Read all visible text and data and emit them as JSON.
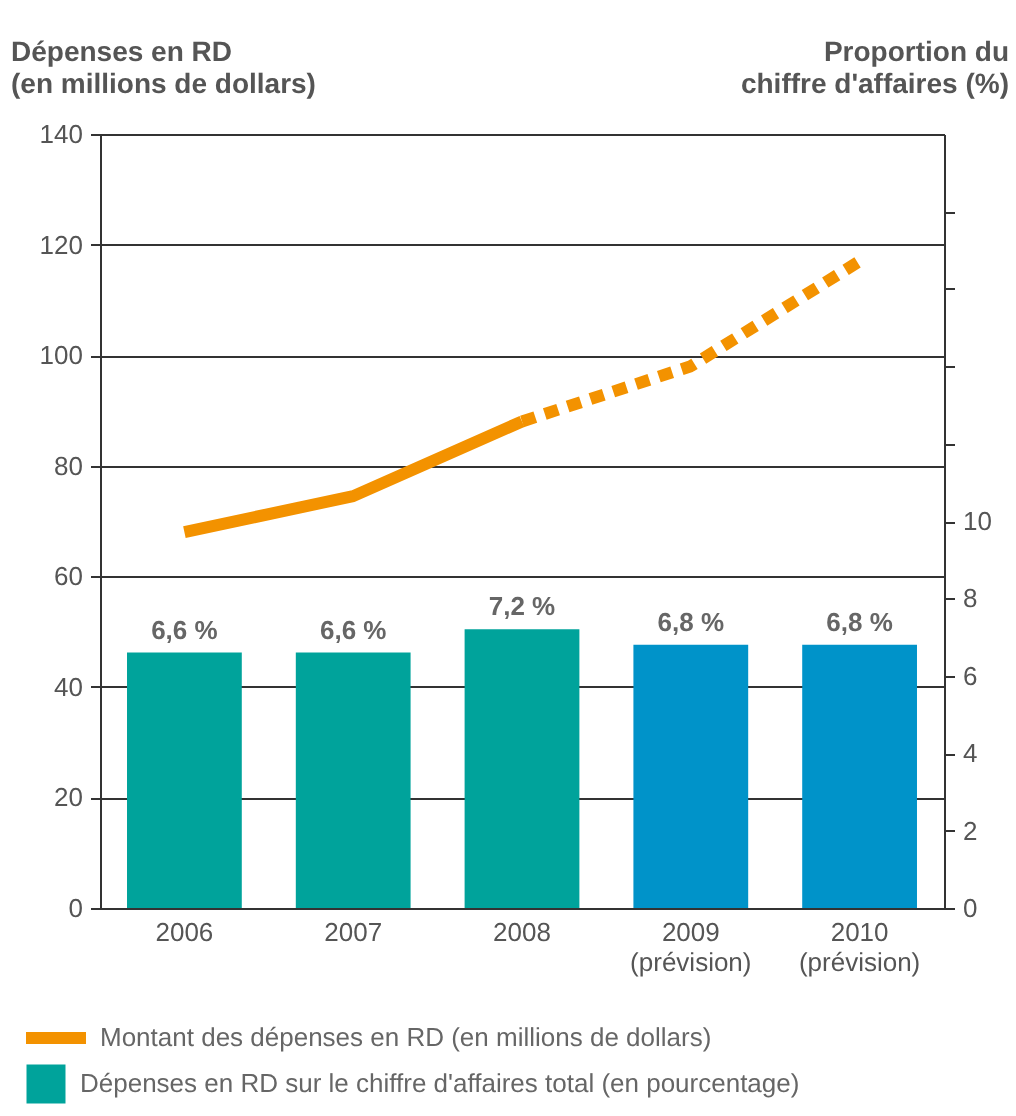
{
  "chart_data": {
    "type": "bar",
    "ylabel": "Dépenses en RD\n(en millions de dollars)",
    "y2label": "Proportion du\nchiffre d'affaires (%)",
    "categories": [
      "2006",
      "2007",
      "2008",
      "2009\n(prévision)",
      "2010\n(prévision)"
    ],
    "series": [
      {
        "name": "Dépenses en RD sur le chiffre d'affaires total (en pourcentage)",
        "axis": "y2",
        "color": "#00a39b",
        "colors": [
          "#00a39b",
          "#00a39b",
          "#00a39b",
          "#0093c9",
          "#0093c9"
        ],
        "values": [
          6.6,
          6.6,
          7.2,
          6.8,
          6.8
        ],
        "value_labels": [
          "6,6 %",
          "6,6 %",
          "7,2 %",
          "6,8 %",
          "6,8 %"
        ]
      },
      {
        "name": "Montant des dépenses en RD (en millions de dollars)",
        "type": "line",
        "color": "#f39200",
        "line_style": "solid",
        "values": [
          68,
          74.5,
          88,
          null,
          null
        ]
      },
      {
        "type": "line",
        "color": "#f39200",
        "line_style": "dashed",
        "values": [
          null,
          null,
          88,
          98,
          117
        ]
      }
    ],
    "ylim": [
      0,
      140
    ],
    "yticks": [
      0,
      20,
      40,
      60,
      80,
      100,
      120,
      140
    ],
    "y2lim": [
      0,
      20
    ],
    "y2ticks": [
      0,
      2,
      4,
      6,
      8,
      10,
      {
        "value": 12,
        "label": null
      },
      {
        "value": 14,
        "label": null
      },
      {
        "value": 16,
        "label": null
      },
      {
        "value": 18,
        "label": null
      }
    ],
    "grid": "y",
    "legend": "bottom",
    "marker": "none"
  }
}
